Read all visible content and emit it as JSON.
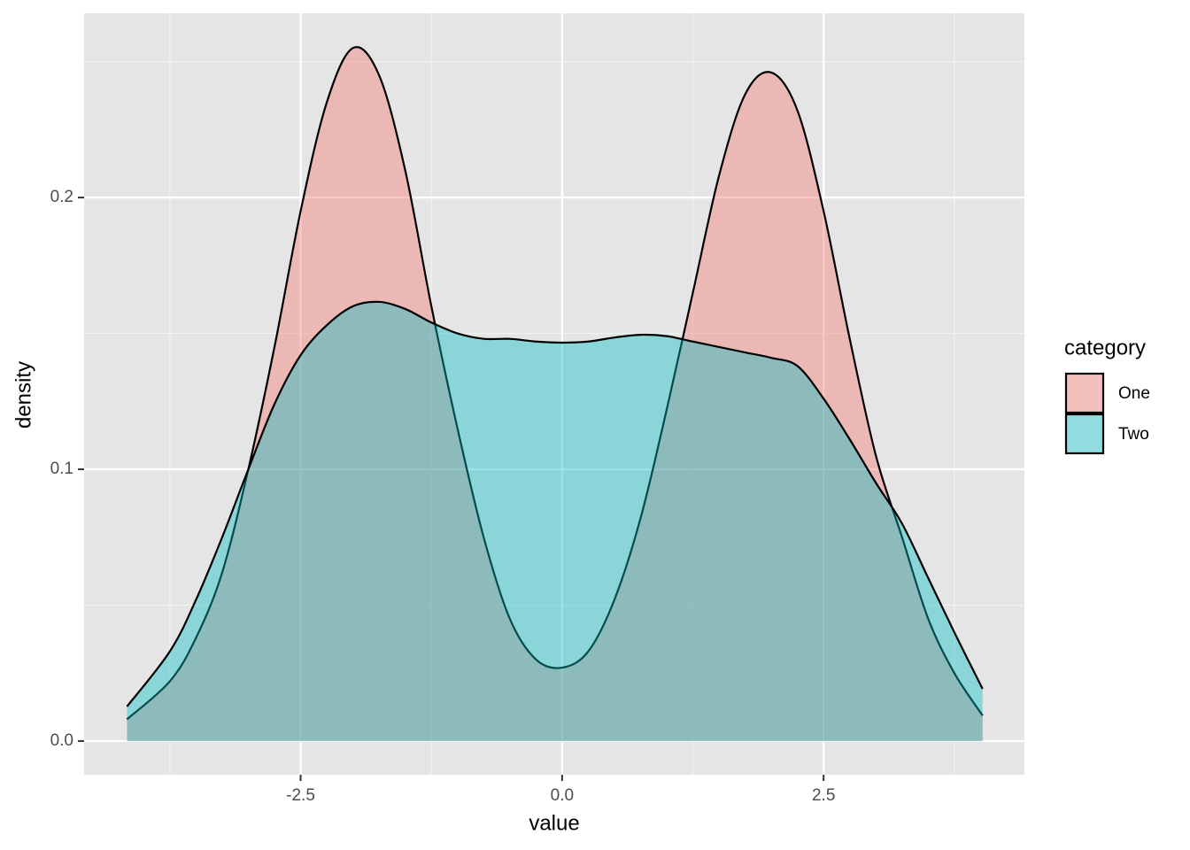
{
  "chart_data": {
    "type": "density",
    "x_label": "value",
    "y_label": "density",
    "x": [
      -4.16,
      -3.75,
      -3.5,
      -3.25,
      -3,
      -2.75,
      -2.5,
      -2.25,
      -2,
      -1.75,
      -1.5,
      -1.25,
      -1,
      -0.75,
      -0.5,
      -0.25,
      0,
      0.25,
      0.5,
      0.75,
      1,
      1.25,
      1.5,
      1.75,
      2,
      2.25,
      2.5,
      2.75,
      3,
      3.25,
      3.5,
      3.75,
      4.02
    ],
    "series": [
      {
        "name": "One",
        "color": "#F8766D",
        "values": [
          0.008,
          0.022,
          0.038,
          0.062,
          0.1,
          0.145,
          0.195,
          0.235,
          0.255,
          0.245,
          0.21,
          0.16,
          0.115,
          0.075,
          0.045,
          0.03,
          0.027,
          0.033,
          0.052,
          0.082,
          0.122,
          0.165,
          0.208,
          0.238,
          0.246,
          0.232,
          0.195,
          0.148,
          0.105,
          0.075,
          0.045,
          0.025,
          0.0094
        ]
      },
      {
        "name": "Two",
        "color": "#00BFC4",
        "values": [
          0.0127,
          0.033,
          0.052,
          0.075,
          0.1,
          0.124,
          0.142,
          0.153,
          0.16,
          0.1616,
          0.159,
          0.154,
          0.15,
          0.148,
          0.148,
          0.147,
          0.1466,
          0.147,
          0.1485,
          0.1495,
          0.149,
          0.147,
          0.145,
          0.143,
          0.141,
          0.138,
          0.126,
          0.111,
          0.095,
          0.08,
          0.06,
          0.04,
          0.0192
        ]
      }
    ],
    "fill_opacity": 0.4,
    "xlim": [
      -4.57,
      4.42
    ],
    "ylim": [
      -0.0124,
      0.2678
    ],
    "xticks": [
      -2.5,
      {
        "value": 0,
        "label": "0.0"
      },
      2.5
    ],
    "yticks": [
      {
        "value": 0,
        "label": "0.0"
      },
      0.1,
      0.2
    ],
    "grid": true,
    "legend_title": "category",
    "legend_position": "right"
  }
}
